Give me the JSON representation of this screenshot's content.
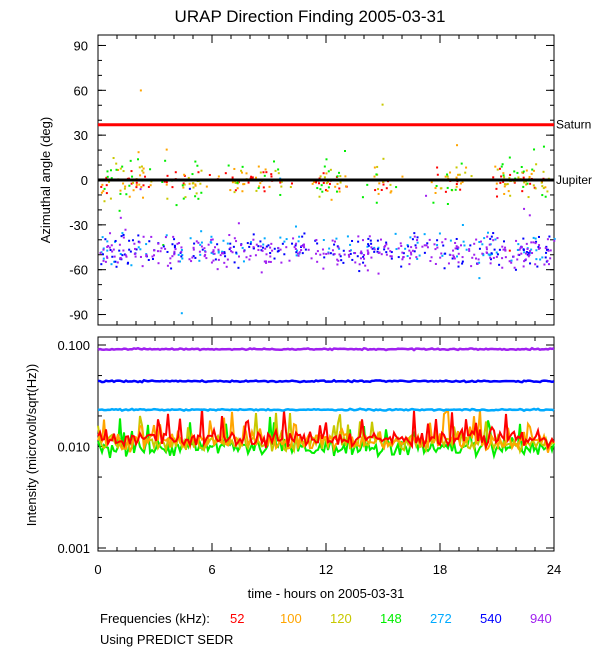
{
  "chart_data": [
    {
      "type": "scatter",
      "title": "URAP Direction Finding  2005-03-31",
      "xlabel": "time - hours on 2005-03-31",
      "ylabel": "Azimuthal angle (deg)",
      "xlim": [
        0,
        24
      ],
      "ylim": [
        -97,
        97
      ],
      "xticks": [
        "0",
        "6",
        "12",
        "18",
        "24"
      ],
      "yticks": [
        "90",
        "60",
        "30",
        "0",
        "-30",
        "-60",
        "-90"
      ],
      "reference_lines": [
        {
          "name": "Saturn",
          "value": 37,
          "color": "#ff0000"
        },
        {
          "name": "Jupiter",
          "value": 0,
          "color": "#000000"
        }
      ],
      "series": [
        {
          "name": "52",
          "color": "#ff0000",
          "mean": 0,
          "spread": 4,
          "count": 90
        },
        {
          "name": "100",
          "color": "#ffa500",
          "mean": 0,
          "spread": 5,
          "count": 100
        },
        {
          "name": "120",
          "color": "#c8c800",
          "mean": 0,
          "spread": 7,
          "count": 90
        },
        {
          "name": "148",
          "color": "#00ee00",
          "mean": 2,
          "spread": 10,
          "count": 80
        },
        {
          "name": "272",
          "color": "#00aaff",
          "mean": -44,
          "spread": 6,
          "count": 120
        },
        {
          "name": "540",
          "color": "#0000ff",
          "mean": -46,
          "spread": 6,
          "count": 180
        },
        {
          "name": "940",
          "color": "#a020f0",
          "mean": -47,
          "spread": 5,
          "count": 320
        }
      ]
    },
    {
      "type": "line",
      "xlabel": "time - hours on 2005-03-31",
      "ylabel": "Intensity (microvolt/sqrt(Hz))",
      "xlim": [
        0,
        24
      ],
      "ylim": [
        0.001,
        0.1
      ],
      "yscale": "log",
      "xticks": [
        "0",
        "6",
        "12",
        "18",
        "24"
      ],
      "yticks": [
        "0.100",
        "0.010",
        "0.001"
      ],
      "series": [
        {
          "name": "940",
          "color": "#a020f0",
          "level": 0.091
        },
        {
          "name": "540",
          "color": "#0000ff",
          "level": 0.044
        },
        {
          "name": "272",
          "color": "#00aaff",
          "level": 0.023
        },
        {
          "name": "52",
          "color": "#ff0000",
          "level": 0.012
        },
        {
          "name": "100",
          "color": "#ffa500",
          "level": 0.0112
        },
        {
          "name": "120",
          "color": "#c8c800",
          "level": 0.011
        },
        {
          "name": "148",
          "color": "#00ee00",
          "level": 0.0097
        }
      ]
    }
  ],
  "legend": {
    "label": "Frequencies (kHz):",
    "items": [
      {
        "label": "52",
        "color": "#ff0000"
      },
      {
        "label": "100",
        "color": "#ffa500"
      },
      {
        "label": "120",
        "color": "#c8c800"
      },
      {
        "label": "148",
        "color": "#00ee00"
      },
      {
        "label": "272",
        "color": "#00aaff"
      },
      {
        "label": "540",
        "color": "#0000ff"
      },
      {
        "label": "940",
        "color": "#a020f0"
      }
    ]
  },
  "source_note": "Using PREDICT SEDR"
}
